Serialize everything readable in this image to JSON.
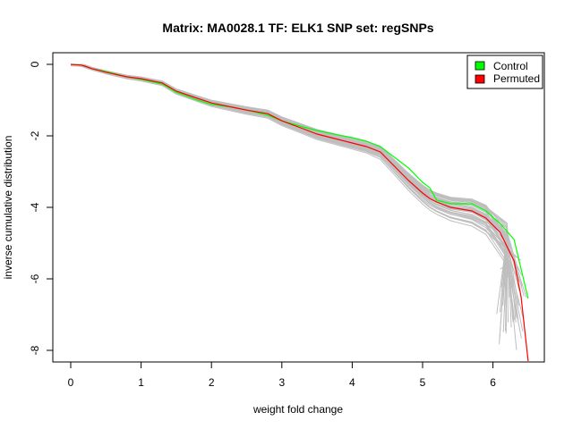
{
  "chart_data": {
    "type": "line",
    "title": "Matrix: MA0028.1 TF: ELK1 SNP set: regSNPs",
    "xlabel": "weight fold change",
    "ylabel": "inverse cumulative distribution",
    "xlim": [
      0,
      6.5
    ],
    "ylim": [
      -8,
      0
    ],
    "xticks": [
      "0",
      "1",
      "2",
      "3",
      "4",
      "5",
      "6"
    ],
    "yticks": [
      "0",
      "-2",
      "-4",
      "-6",
      "-8"
    ],
    "legend": {
      "position": "top-right",
      "entries": [
        {
          "label": "Control",
          "color": "#00ff00"
        },
        {
          "label": "Permuted",
          "color": "#ff0000"
        }
      ]
    },
    "background_series_color": "#bebebe",
    "background_series_count": 40,
    "series": [
      {
        "name": "Control",
        "color": "#00ff00",
        "x": [
          0,
          0.15,
          0.2,
          0.3,
          0.5,
          0.8,
          1.0,
          1.3,
          1.5,
          1.8,
          2.0,
          2.3,
          2.5,
          2.8,
          3.0,
          3.3,
          3.5,
          3.8,
          4.0,
          4.2,
          4.4,
          4.6,
          4.8,
          5.0,
          5.1,
          5.2,
          5.4,
          5.7,
          5.9,
          6.1,
          6.3,
          6.5
        ],
        "y": [
          0,
          -0.02,
          -0.05,
          -0.12,
          -0.2,
          -0.35,
          -0.42,
          -0.55,
          -0.78,
          -1.0,
          -1.12,
          -1.2,
          -1.28,
          -1.42,
          -1.58,
          -1.75,
          -1.85,
          -1.98,
          -2.05,
          -2.15,
          -2.3,
          -2.6,
          -2.9,
          -3.3,
          -3.45,
          -3.8,
          -3.9,
          -3.9,
          -4.1,
          -4.45,
          -4.9,
          -6.55
        ]
      },
      {
        "name": "Permuted",
        "color": "#ff0000",
        "x": [
          0,
          0.15,
          0.2,
          0.3,
          0.5,
          0.8,
          1.0,
          1.3,
          1.5,
          1.8,
          2.0,
          2.3,
          2.5,
          2.8,
          3.0,
          3.3,
          3.5,
          3.8,
          4.0,
          4.2,
          4.4,
          4.6,
          4.8,
          5.0,
          5.1,
          5.2,
          5.4,
          5.7,
          5.9,
          6.1,
          6.3,
          6.4,
          6.5
        ],
        "y": [
          0,
          -0.02,
          -0.05,
          -0.12,
          -0.22,
          -0.35,
          -0.4,
          -0.52,
          -0.75,
          -0.95,
          -1.08,
          -1.2,
          -1.28,
          -1.38,
          -1.58,
          -1.8,
          -1.95,
          -2.1,
          -2.2,
          -2.3,
          -2.45,
          -2.85,
          -3.25,
          -3.6,
          -3.75,
          -3.85,
          -4.0,
          -4.1,
          -4.3,
          -4.7,
          -5.5,
          -6.5,
          -8.3
        ]
      }
    ]
  }
}
